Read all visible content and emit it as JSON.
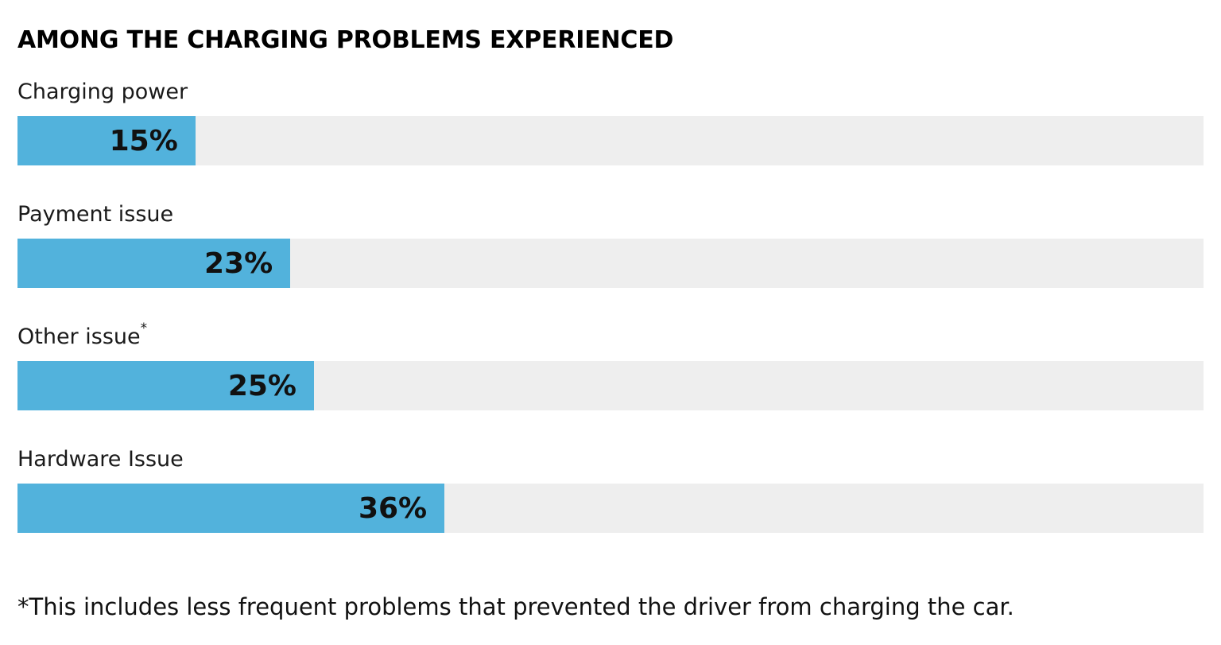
{
  "chart": {
    "title": "AMONG THE CHARGING PROBLEMS EXPERIENCED",
    "footnote": "*This includes less frequent problems that prevented the driver from charging the car.",
    "colors": {
      "bar_fill": "#52b2dc",
      "bar_track": "#eeeeee",
      "text": "#111111",
      "background": "#ffffff"
    }
  },
  "chart_data": {
    "type": "bar",
    "orientation": "horizontal",
    "title": "AMONG THE CHARGING PROBLEMS EXPERIENCED",
    "xlabel": "",
    "ylabel": "",
    "xlim": [
      0,
      100
    ],
    "grid": false,
    "legend": "none",
    "value_unit": "%",
    "categories": [
      "Charging power",
      "Payment issue",
      "Other issue*",
      "Hardware Issue"
    ],
    "values": [
      15,
      23,
      25,
      36
    ],
    "rows": [
      {
        "label": "Charging power",
        "sup": "",
        "value": 15,
        "value_label": "15%"
      },
      {
        "label": "Payment issue",
        "sup": "",
        "value": 23,
        "value_label": "23%"
      },
      {
        "label": "Other issue",
        "sup": "*",
        "value": 25,
        "value_label": "25%"
      },
      {
        "label": "Hardware Issue",
        "sup": "",
        "value": 36,
        "value_label": "36%"
      }
    ],
    "annotations": [
      "*This includes less frequent problems that prevented the driver from charging the car."
    ]
  }
}
